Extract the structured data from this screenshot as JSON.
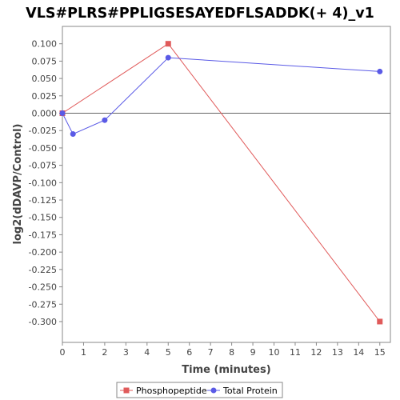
{
  "chart_data": {
    "type": "line",
    "title": "VLS#PLRS#PPLIGSESAYEDFLSADDK(+ 4)_v1",
    "xlabel": "Time (minutes)",
    "ylabel": "log2(dDAVP/Control)",
    "xlim": [
      0,
      15.5
    ],
    "ylim": [
      -0.33,
      0.125
    ],
    "xticks": [
      0,
      1,
      2,
      3,
      4,
      5,
      6,
      7,
      8,
      9,
      10,
      11,
      12,
      13,
      14,
      15
    ],
    "yticks": [
      0.1,
      0.075,
      0.05,
      0.025,
      0.0,
      -0.025,
      -0.05,
      -0.075,
      -0.1,
      -0.125,
      -0.15,
      -0.175,
      -0.2,
      -0.225,
      -0.25,
      -0.275,
      -0.3
    ],
    "ytick_labels": [
      "0.100",
      "0.075",
      "0.050",
      "0.025",
      "0.000",
      "-0.025",
      "-0.050",
      "-0.075",
      "-0.100",
      "-0.125",
      "-0.150",
      "-0.175",
      "-0.200",
      "-0.225",
      "-0.250",
      "-0.275",
      "-0.300"
    ],
    "zero_line": 0,
    "grid": false,
    "legend_position": "bottom",
    "series": [
      {
        "name": "Phosphopeptide",
        "color": "#e05a5a",
        "marker": "square",
        "x": [
          0,
          5,
          15
        ],
        "y": [
          0.0,
          0.1,
          -0.3
        ]
      },
      {
        "name": "Total Protein",
        "color": "#5a5ae6",
        "marker": "circle",
        "x": [
          0,
          0.5,
          2,
          5,
          15
        ],
        "y": [
          0.0,
          -0.03,
          -0.01,
          0.08,
          0.06
        ]
      }
    ]
  }
}
